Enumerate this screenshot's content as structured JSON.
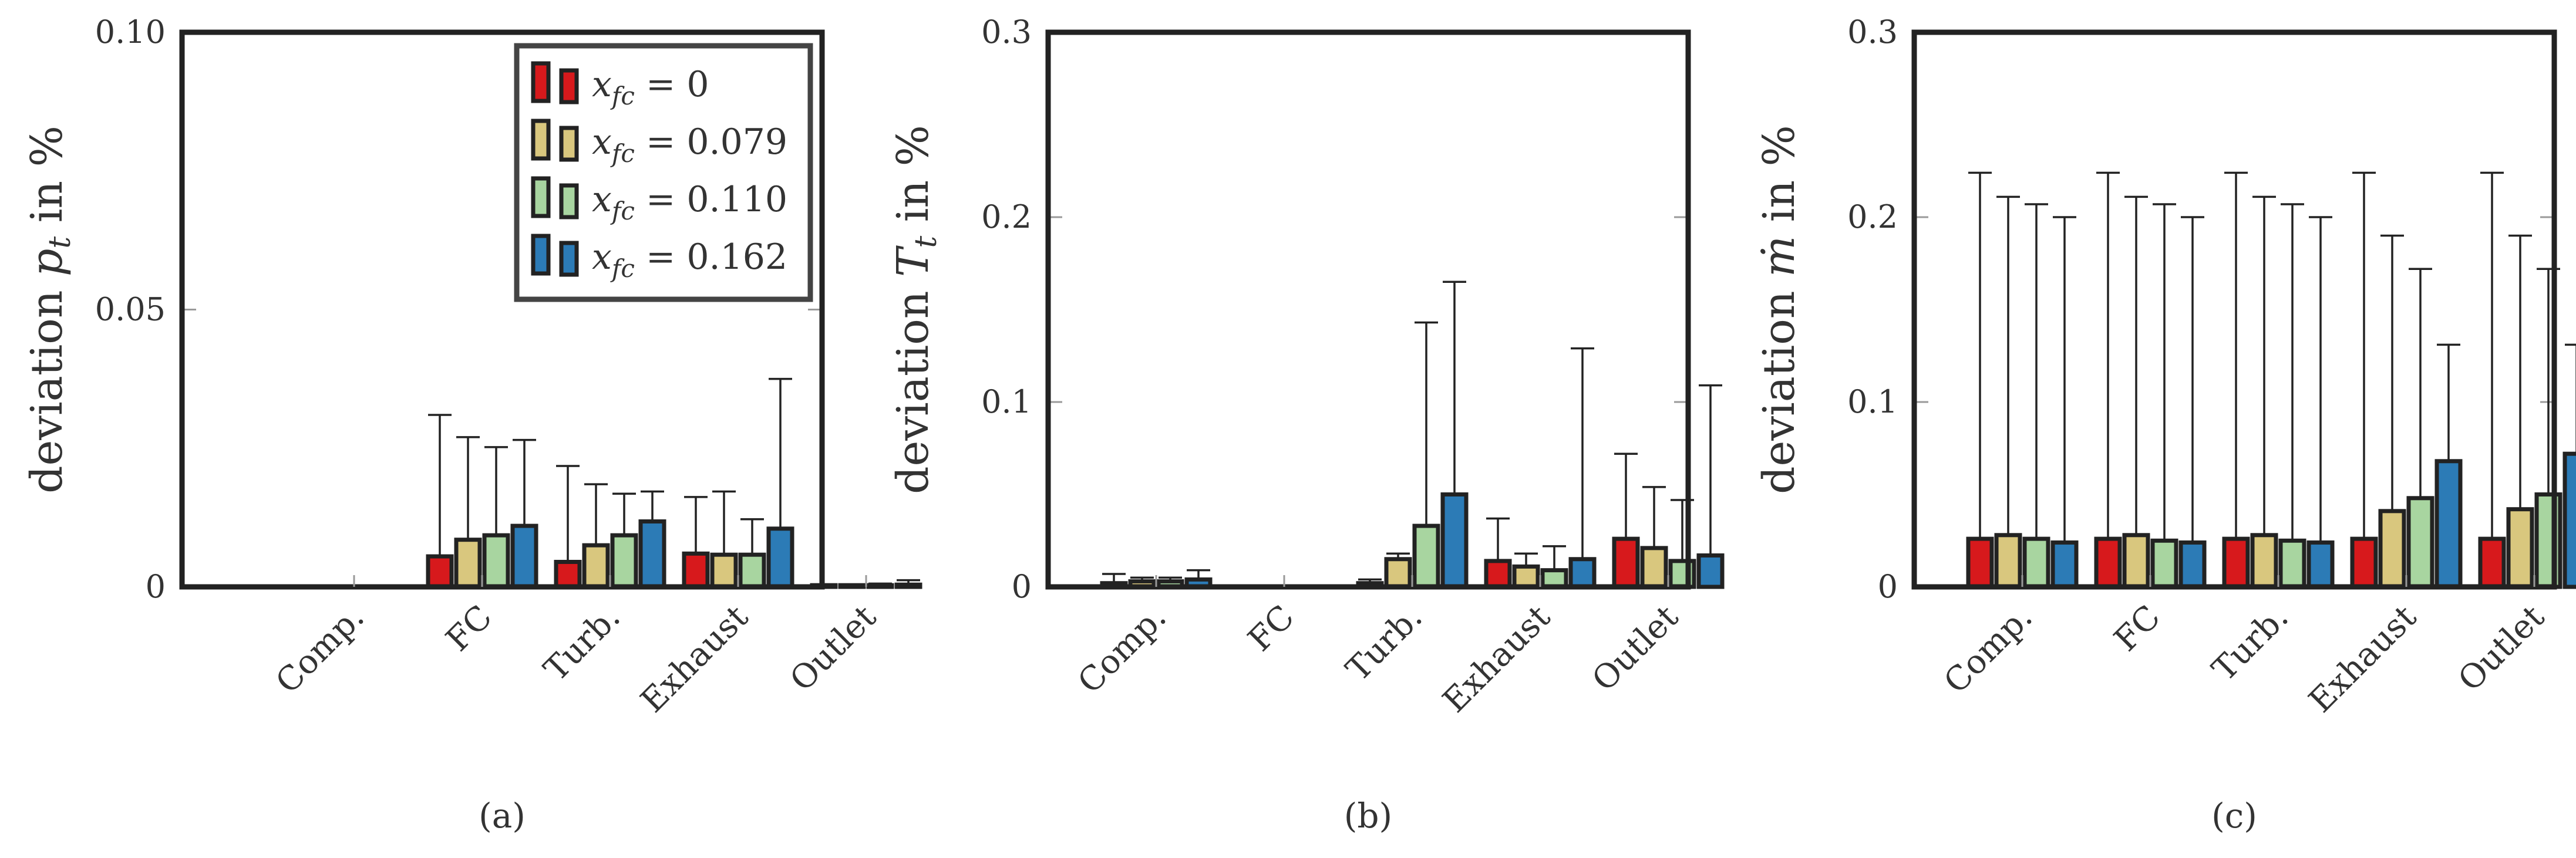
{
  "colors": {
    "red": "#d7191c",
    "tan": "#d9c77e",
    "green": "#a8d5a0",
    "blue": "#2c7bb6",
    "stroke": "#222222"
  },
  "legend": {
    "location": "top-right of plot (a)",
    "entries": [
      {
        "label": "x_fc = 0",
        "color_key": "red"
      },
      {
        "label": "x_fc = 0.079",
        "color_key": "tan"
      },
      {
        "label": "x_fc = 0.110",
        "color_key": "green"
      },
      {
        "label": "x_fc = 0.162",
        "color_key": "blue"
      }
    ]
  },
  "chart_data": [
    {
      "type": "bar",
      "panel_label": "(a)",
      "ylabel": "deviation p_t in %",
      "ylim": [
        0,
        0.1
      ],
      "yticks": [
        0,
        0.05,
        0.1
      ],
      "ytick_labels": [
        "0",
        "0.05",
        "0.10"
      ],
      "categories": [
        "Comp.",
        "FC",
        "Turb.",
        "Exhaust",
        "Outlet"
      ],
      "series": [
        {
          "name": "x_fc = 0",
          "values": [
            0,
            0.0055,
            0.0045,
            0.006,
            0.0003
          ],
          "err_upper": [
            0,
            0.031,
            0.0218,
            0.0162,
            0.0003
          ]
        },
        {
          "name": "x_fc = 0.079",
          "values": [
            0,
            0.0085,
            0.0075,
            0.0058,
            0.0003
          ],
          "err_upper": [
            0,
            0.027,
            0.0185,
            0.0172,
            0.0004
          ]
        },
        {
          "name": "x_fc = 0.110",
          "values": [
            0,
            0.0093,
            0.0093,
            0.0058,
            0.0003
          ],
          "err_upper": [
            0,
            0.0252,
            0.0168,
            0.0122,
            0.0006
          ]
        },
        {
          "name": "x_fc = 0.162",
          "values": [
            0,
            0.011,
            0.0118,
            0.0105,
            0.0004
          ],
          "err_upper": [
            0,
            0.0265,
            0.0172,
            0.0375,
            0.0012
          ]
        }
      ]
    },
    {
      "type": "bar",
      "panel_label": "(b)",
      "ylabel": "deviation T_t in %",
      "ylim": [
        0,
        0.3
      ],
      "yticks": [
        0,
        0.1,
        0.2,
        0.3
      ],
      "ytick_labels": [
        "0",
        "0.1",
        "0.2",
        "0.3"
      ],
      "categories": [
        "Comp.",
        "FC",
        "Turb.",
        "Exhaust",
        "Outlet"
      ],
      "series": [
        {
          "name": "x_fc = 0",
          "values": [
            0.002,
            0,
            0.002,
            0.014,
            0.026
          ],
          "err_upper": [
            0.007,
            0,
            0.004,
            0.037,
            0.072
          ]
        },
        {
          "name": "x_fc = 0.079",
          "values": [
            0.003,
            0,
            0.015,
            0.011,
            0.021
          ],
          "err_upper": [
            0.005,
            0,
            0.018,
            0.018,
            0.054
          ]
        },
        {
          "name": "x_fc = 0.110",
          "values": [
            0.003,
            0,
            0.033,
            0.009,
            0.014
          ],
          "err_upper": [
            0.005,
            0,
            0.143,
            0.022,
            0.047
          ]
        },
        {
          "name": "x_fc = 0.162",
          "values": [
            0.004,
            0,
            0.05,
            0.015,
            0.017
          ],
          "err_upper": [
            0.009,
            0,
            0.165,
            0.129,
            0.109
          ]
        }
      ]
    },
    {
      "type": "bar",
      "panel_label": "(c)",
      "ylabel": "deviation ṁ in %",
      "ylim": [
        0,
        0.3
      ],
      "yticks": [
        0,
        0.1,
        0.2,
        0.3
      ],
      "ytick_labels": [
        "0",
        "0.1",
        "0.2",
        "0.3"
      ],
      "categories": [
        "Comp.",
        "FC",
        "Turb.",
        "Exhaust",
        "Outlet"
      ],
      "series": [
        {
          "name": "x_fc = 0",
          "values": [
            0.026,
            0.026,
            0.026,
            0.026,
            0.026
          ],
          "err_upper": [
            0.224,
            0.224,
            0.224,
            0.224,
            0.224
          ]
        },
        {
          "name": "x_fc = 0.079",
          "values": [
            0.028,
            0.028,
            0.028,
            0.041,
            0.042
          ],
          "err_upper": [
            0.211,
            0.211,
            0.211,
            0.19,
            0.19
          ]
        },
        {
          "name": "x_fc = 0.110",
          "values": [
            0.026,
            0.025,
            0.025,
            0.048,
            0.05
          ],
          "err_upper": [
            0.207,
            0.207,
            0.207,
            0.172,
            0.172
          ]
        },
        {
          "name": "x_fc = 0.162",
          "values": [
            0.024,
            0.024,
            0.024,
            0.068,
            0.072
          ],
          "err_upper": [
            0.2,
            0.2,
            0.2,
            0.131,
            0.131
          ]
        }
      ]
    }
  ]
}
